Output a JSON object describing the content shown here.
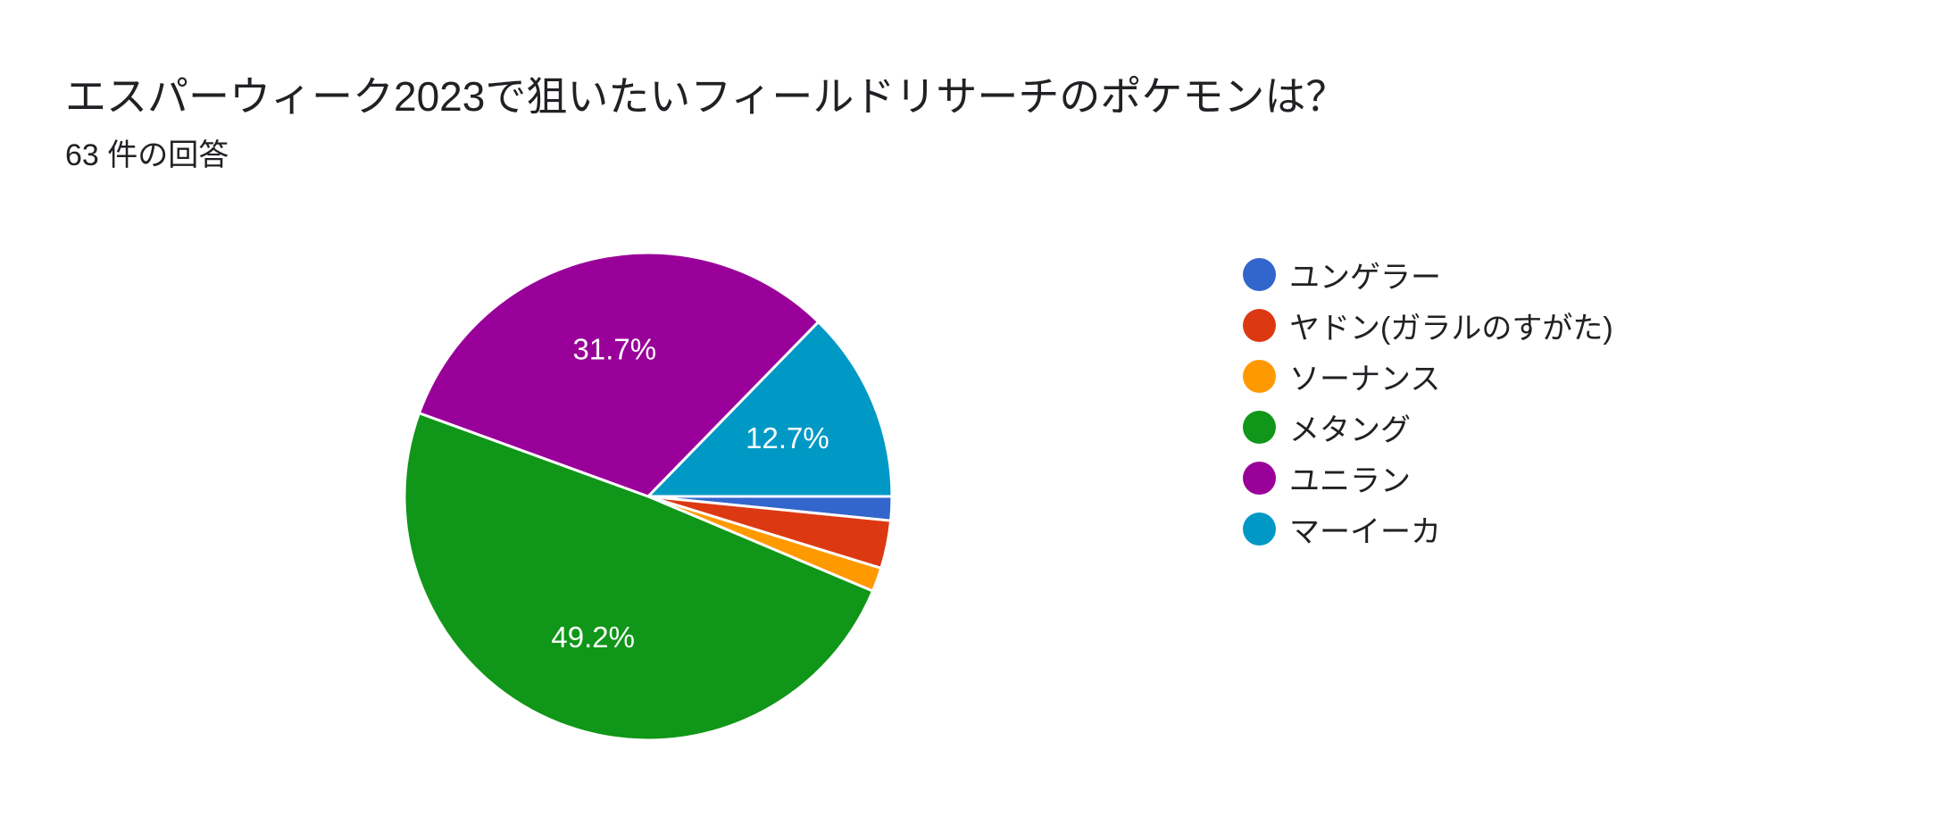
{
  "chart_data": {
    "type": "pie",
    "title": "エスパーウィーク2023で狙いたいフィールドリサーチのポケモンは？",
    "subtitle": "63 件の回答",
    "legend_position": "right",
    "slices": [
      {
        "label": "ユンゲラー",
        "count": 1,
        "percent": 1.6,
        "color": "#3366cc",
        "display_label": ""
      },
      {
        "label": "ヤドン(ガラルのすがた)",
        "count": 2,
        "percent": 3.2,
        "color": "#dc3912",
        "display_label": ""
      },
      {
        "label": "ソーナンス",
        "count": 1,
        "percent": 1.6,
        "color": "#ff9900",
        "display_label": ""
      },
      {
        "label": "メタング",
        "count": 31,
        "percent": 49.2,
        "color": "#109618",
        "display_label": "49.2%"
      },
      {
        "label": "ユニラン",
        "count": 20,
        "percent": 31.7,
        "color": "#990099",
        "display_label": "31.7%"
      },
      {
        "label": "マーイーカ",
        "count": 8,
        "percent": 12.7,
        "color": "#0099c6",
        "display_label": "12.7%"
      }
    ]
  }
}
